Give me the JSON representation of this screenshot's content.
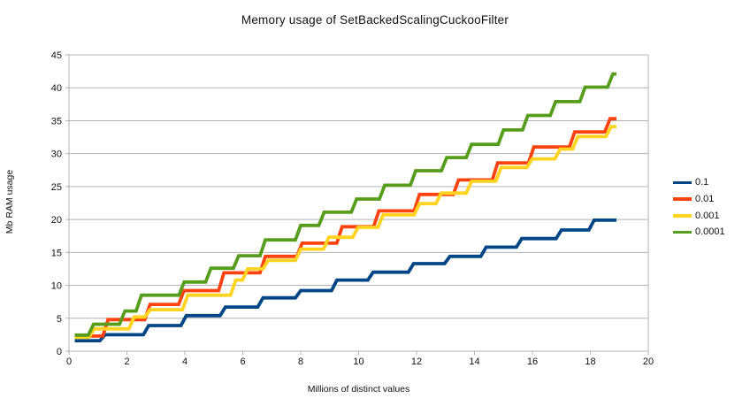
{
  "chart_data": {
    "type": "line",
    "subtype": "step",
    "title": "Memory usage of SetBackedScalingCuckooFilter",
    "xlabel": "Millions of distinct values",
    "ylabel": "Mb RAM usage",
    "xlim": [
      0,
      20
    ],
    "ylim": [
      0,
      45
    ],
    "x_tick_step": 2,
    "y_tick_step": 5,
    "x_ticks": [
      "0",
      "2",
      "4",
      "6",
      "8",
      "10",
      "12",
      "14",
      "16",
      "18",
      "20"
    ],
    "y_ticks": [
      "0",
      "5",
      "10",
      "15",
      "20",
      "25",
      "30",
      "35",
      "40",
      "45"
    ],
    "grid": "horizontal-major-only",
    "legend_position": "right",
    "axis_color": "#b3b3b3",
    "grid_color": "#b3b3b3",
    "text_color": "#111111",
    "series": [
      {
        "name": "0.1",
        "color": "#004586",
        "points": [
          [
            0.2,
            1.6
          ],
          [
            1.25,
            2.5
          ],
          [
            2.75,
            3.9
          ],
          [
            4.05,
            5.4
          ],
          [
            5.4,
            6.7
          ],
          [
            6.7,
            8.1
          ],
          [
            8.0,
            9.2
          ],
          [
            9.25,
            10.8
          ],
          [
            10.5,
            12.0
          ],
          [
            11.9,
            13.3
          ],
          [
            13.15,
            14.4
          ],
          [
            14.4,
            15.8
          ],
          [
            15.63,
            17.1
          ],
          [
            17.0,
            18.4
          ],
          [
            18.13,
            19.9
          ]
        ],
        "end_x": 18.9
      },
      {
        "name": "0.01",
        "color": "#ff420e",
        "points": [
          [
            0.2,
            2.3
          ],
          [
            1.35,
            4.8
          ],
          [
            2.8,
            7.1
          ],
          [
            3.97,
            9.2
          ],
          [
            5.35,
            11.9
          ],
          [
            6.78,
            14.4
          ],
          [
            8.05,
            16.4
          ],
          [
            9.43,
            18.9
          ],
          [
            10.7,
            21.3
          ],
          [
            12.1,
            23.8
          ],
          [
            13.45,
            26.0
          ],
          [
            14.8,
            28.6
          ],
          [
            16.05,
            31.0
          ],
          [
            17.46,
            33.3
          ],
          [
            18.68,
            35.3
          ]
        ],
        "end_x": 18.9
      },
      {
        "name": "0.001",
        "color": "#ffd320",
        "points": [
          [
            0.2,
            2.1
          ],
          [
            0.87,
            3.4
          ],
          [
            2.25,
            5.2
          ],
          [
            2.8,
            6.3
          ],
          [
            4.1,
            8.5
          ],
          [
            5.76,
            10.8
          ],
          [
            6.17,
            12.5
          ],
          [
            6.88,
            13.8
          ],
          [
            8.0,
            15.5
          ],
          [
            8.97,
            17.3
          ],
          [
            9.98,
            18.8
          ],
          [
            10.85,
            20.7
          ],
          [
            12.1,
            22.4
          ],
          [
            12.85,
            24.0
          ],
          [
            13.9,
            25.8
          ],
          [
            14.92,
            27.9
          ],
          [
            15.99,
            29.2
          ],
          [
            16.96,
            30.7
          ],
          [
            17.57,
            32.6
          ],
          [
            18.72,
            34.1
          ]
        ],
        "end_x": 18.9
      },
      {
        "name": "0.0001",
        "color": "#579d1c",
        "points": [
          [
            0.2,
            2.45
          ],
          [
            0.85,
            4.1
          ],
          [
            1.93,
            6.1
          ],
          [
            2.5,
            8.5
          ],
          [
            3.98,
            10.5
          ],
          [
            4.9,
            12.6
          ],
          [
            5.86,
            14.5
          ],
          [
            6.78,
            16.9
          ],
          [
            8.0,
            19.1
          ],
          [
            8.81,
            21.1
          ],
          [
            9.93,
            23.1
          ],
          [
            10.9,
            25.2
          ],
          [
            11.97,
            27.4
          ],
          [
            13.04,
            29.4
          ],
          [
            13.9,
            31.4
          ],
          [
            15.0,
            33.6
          ],
          [
            15.84,
            35.8
          ],
          [
            16.8,
            37.9
          ],
          [
            17.82,
            40.1
          ],
          [
            18.78,
            42.1
          ]
        ],
        "end_x": 18.9
      }
    ]
  }
}
